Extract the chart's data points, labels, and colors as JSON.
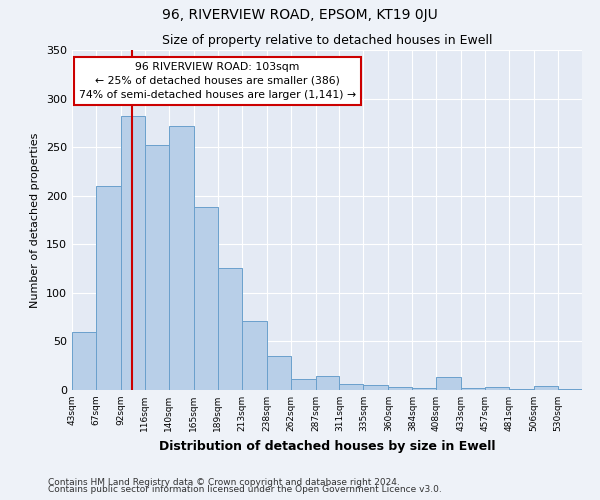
{
  "title": "96, RIVERVIEW ROAD, EPSOM, KT19 0JU",
  "subtitle": "Size of property relative to detached houses in Ewell",
  "xlabel": "Distribution of detached houses by size in Ewell",
  "ylabel": "Number of detached properties",
  "bin_labels": [
    "43sqm",
    "67sqm",
    "92sqm",
    "116sqm",
    "140sqm",
    "165sqm",
    "189sqm",
    "213sqm",
    "238sqm",
    "262sqm",
    "287sqm",
    "311sqm",
    "335sqm",
    "360sqm",
    "384sqm",
    "408sqm",
    "433sqm",
    "457sqm",
    "481sqm",
    "506sqm",
    "530sqm"
  ],
  "bin_edges": [
    43,
    67,
    92,
    116,
    140,
    165,
    189,
    213,
    238,
    262,
    287,
    311,
    335,
    360,
    384,
    408,
    433,
    457,
    481,
    506,
    530,
    554
  ],
  "bar_heights": [
    60,
    210,
    282,
    252,
    272,
    188,
    126,
    71,
    35,
    11,
    14,
    6,
    5,
    3,
    2,
    13,
    2,
    3,
    1,
    4,
    1
  ],
  "bar_color": "#b8cfe8",
  "bar_edge_color": "#6aa0cc",
  "red_line_x": 103,
  "annotation_line0": "96 RIVERVIEW ROAD: 103sqm",
  "annotation_line1": "← 25% of detached houses are smaller (386)",
  "annotation_line2": "74% of semi-detached houses are larger (1,141) →",
  "annotation_box_color": "#ffffff",
  "annotation_box_edge": "#cc0000",
  "red_line_color": "#cc0000",
  "ylim": [
    0,
    350
  ],
  "yticks": [
    0,
    50,
    100,
    150,
    200,
    250,
    300,
    350
  ],
  "footer1": "Contains HM Land Registry data © Crown copyright and database right 2024.",
  "footer2": "Contains public sector information licensed under the Open Government Licence v3.0.",
  "background_color": "#eef2f8",
  "plot_background_color": "#e4eaf4"
}
